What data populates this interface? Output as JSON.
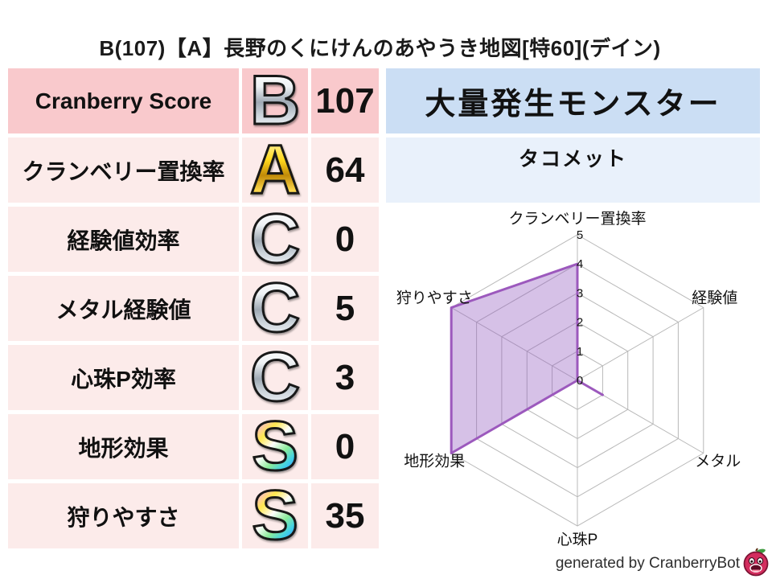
{
  "title": "B(107)【A】長野のくにけんのあやうき地図[特60](デイン)",
  "table": {
    "rows": [
      {
        "label": "Cranberry Score",
        "grade": "B",
        "grade_style": "silver",
        "value": "107"
      },
      {
        "label": "クランベリー置換率",
        "grade": "A",
        "grade_style": "gold",
        "value": "64"
      },
      {
        "label": "経験値効率",
        "grade": "C",
        "grade_style": "silver",
        "value": "0"
      },
      {
        "label": "メタル経験値",
        "grade": "C",
        "grade_style": "silver",
        "value": "5"
      },
      {
        "label": "心珠P効率",
        "grade": "C",
        "grade_style": "silver",
        "value": "3"
      },
      {
        "label": "地形効果",
        "grade": "S",
        "grade_style": "rainbow",
        "value": "0"
      },
      {
        "label": "狩りやすさ",
        "grade": "S",
        "grade_style": "rainbow",
        "value": "35"
      }
    ]
  },
  "monster_panel": {
    "header": "大量発生モンスター",
    "monster": "タコメット"
  },
  "chart_data": {
    "type": "radar",
    "title": "",
    "categories": [
      "クランベリー置換率",
      "経験値",
      "メタル",
      "心珠P",
      "地形効果",
      "狩りやすさ"
    ],
    "values": [
      4,
      0,
      1,
      0,
      5,
      5
    ],
    "tick_labels": [
      "0",
      "1",
      "2",
      "3",
      "4",
      "5"
    ],
    "range": [
      0,
      5
    ],
    "grid": true,
    "legend": false,
    "fill_color": "rgba(148,92,191,0.38)",
    "stroke_color": "#9c59bd",
    "grid_color": "#b8b8b8"
  },
  "footer": {
    "credit": "generated by CranberryBot",
    "icon": "cranberry-bot-icon"
  },
  "colors": {
    "header_pink": "#f9c9cc",
    "row_pink": "#fcebea",
    "header_blue": "#cbdef4",
    "row_blue": "#e9f1fb",
    "text": "#1a1a1a"
  }
}
